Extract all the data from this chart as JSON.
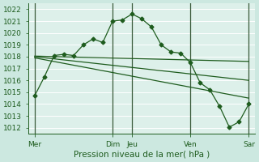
{
  "bg_color": "#cce8e0",
  "plot_bg_color": "#ddf0ea",
  "grid_color": "#ffffff",
  "grid_color_minor": "#e8d8d8",
  "line_color": "#1e5c1e",
  "axis_label": "Pression niveau de la mer( hPa )",
  "ylim": [
    1011.5,
    1022.5
  ],
  "yticks": [
    1012,
    1013,
    1014,
    1015,
    1016,
    1017,
    1018,
    1019,
    1020,
    1021,
    1022
  ],
  "day_labels": [
    "Mer",
    "Dim",
    "Jeu",
    "Ven",
    "Sar"
  ],
  "day_positions": [
    0,
    48,
    60,
    96,
    132
  ],
  "xlim": [
    -4,
    136
  ],
  "series1_x": [
    0,
    6,
    12,
    18,
    24,
    30,
    36,
    42,
    48,
    54,
    60,
    66,
    72,
    78,
    84,
    90,
    96,
    102,
    108,
    114,
    120,
    126,
    132
  ],
  "series1_y": [
    1014.7,
    1016.3,
    1018.1,
    1018.2,
    1018.1,
    1019.0,
    1019.5,
    1019.2,
    1021.0,
    1021.1,
    1021.6,
    1021.2,
    1020.5,
    1019.0,
    1018.4,
    1018.3,
    1017.5,
    1015.8,
    1015.2,
    1013.8,
    1012.05,
    1012.5,
    1014.0
  ],
  "series2_x": [
    0,
    132
  ],
  "series2_y": [
    1018.05,
    1017.6
  ],
  "series3_x": [
    0,
    132
  ],
  "series3_y": [
    1018.0,
    1016.0
  ],
  "series4_x": [
    0,
    132
  ],
  "series4_y": [
    1017.9,
    1014.5
  ],
  "vline_positions": [
    0,
    48,
    60,
    96,
    132
  ],
  "tick_fontsize": 6.5,
  "xlabel_fontsize": 7.5,
  "marker_size": 2.5,
  "line_width": 0.9
}
